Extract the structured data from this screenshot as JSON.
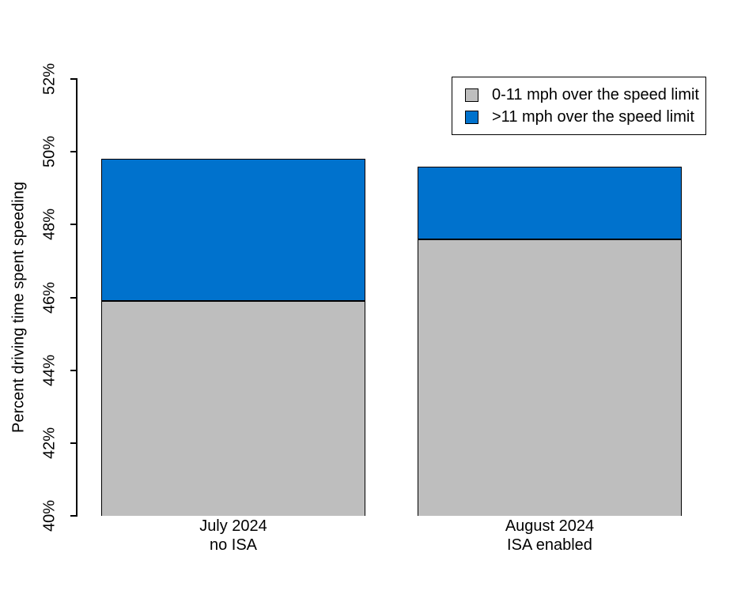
{
  "chart_data": {
    "type": "bar",
    "stacked": true,
    "title": "",
    "xlabel": "",
    "ylabel": "Percent driving time spent speeding",
    "ylim": [
      40,
      52
    ],
    "baseline": 40,
    "yticks": [
      40,
      42,
      44,
      46,
      48,
      50,
      52
    ],
    "ytick_suffix": "%",
    "grid": false,
    "legend_position": "top-right",
    "axis_color": "#000000",
    "bar_border_color": "#000000",
    "background_color": "#FFFFFF",
    "categories": [
      [
        "July 2024",
        "no ISA"
      ],
      [
        "August 2024",
        "ISA enabled"
      ]
    ],
    "series": [
      {
        "name": "0-11 mph over the speed limit",
        "color": "#BEBEBE",
        "values": [
          45.9,
          47.6
        ]
      },
      {
        "name": ">11 mph over the speed limit",
        "color": "#0072CD",
        "values": [
          3.9,
          2.0
        ]
      }
    ],
    "stack_totals": [
      49.8,
      49.6
    ]
  }
}
